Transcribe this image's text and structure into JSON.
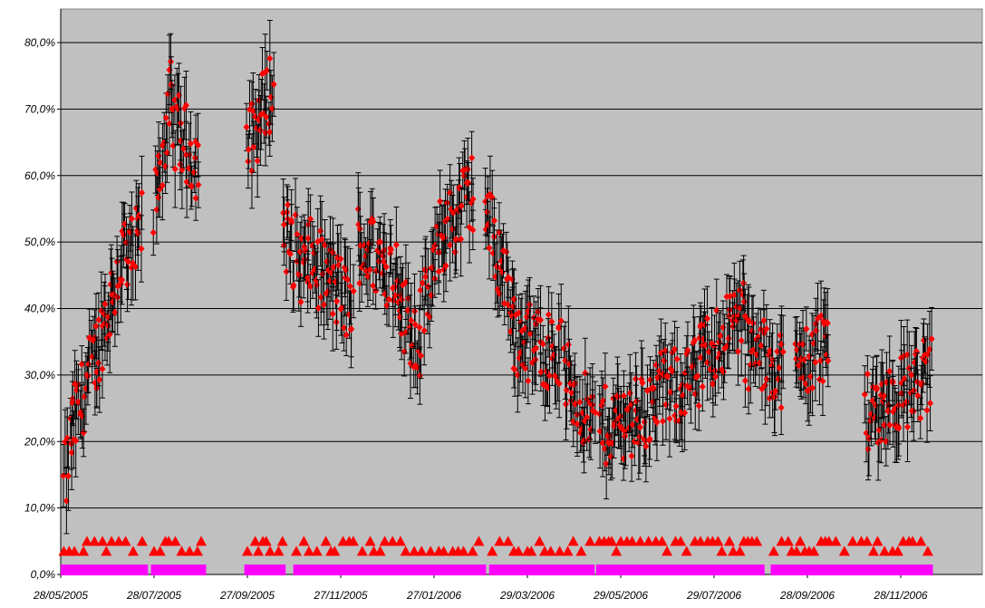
{
  "chart_data": {
    "type": "scatter",
    "title": "",
    "xlabel": "",
    "ylabel": "",
    "x_range": [
      "2005-05-28",
      "2006-12-20"
    ],
    "ylim": [
      0,
      0.85
    ],
    "grid": true,
    "legend": "none",
    "colors": {
      "plot_bg": "#c0c0c0",
      "points": "#ff0000",
      "error_bars": "#000000",
      "periods": "#ff00ff",
      "triangles": "#ff0000",
      "gridlines": "#000000"
    },
    "y_ticks": [
      {
        "v": 0.0,
        "label": "0,0%"
      },
      {
        "v": 0.1,
        "label": "10,0%"
      },
      {
        "v": 0.2,
        "label": "20,0%"
      },
      {
        "v": 0.3,
        "label": "30,0%"
      },
      {
        "v": 0.4,
        "label": "40,0%"
      },
      {
        "v": 0.5,
        "label": "50,0%"
      },
      {
        "v": 0.6,
        "label": "60,0%"
      },
      {
        "v": 0.7,
        "label": "70,0%"
      },
      {
        "v": 0.8,
        "label": "80,0%"
      }
    ],
    "x_ticks": [
      {
        "date": "2005-05-28",
        "label": "28/05/2005"
      },
      {
        "date": "2005-07-28",
        "label": "28/07/2005"
      },
      {
        "date": "2005-09-27",
        "label": "27/09/2005"
      },
      {
        "date": "2005-11-27",
        "label": "27/11/2005"
      },
      {
        "date": "2006-01-27",
        "label": "27/01/2006"
      },
      {
        "date": "2006-03-29",
        "label": "29/03/2006"
      },
      {
        "date": "2006-05-29",
        "label": "29/05/2006"
      },
      {
        "date": "2006-07-29",
        "label": "29/07/2006"
      },
      {
        "date": "2006-09-28",
        "label": "28/09/2006"
      },
      {
        "date": "2006-11-28",
        "label": "28/11/2006"
      }
    ],
    "series": [
      {
        "marker": "diamond",
        "color": "#ff0000",
        "segments": [
          {
            "start": "2005-05-30",
            "end": "2005-06-05",
            "from": 0.13,
            "to": 0.22
          },
          {
            "start": "2005-06-05",
            "end": "2005-06-20",
            "from": 0.22,
            "to": 0.33
          },
          {
            "start": "2005-06-20",
            "end": "2005-07-10",
            "from": 0.33,
            "to": 0.5
          },
          {
            "start": "2005-07-10",
            "end": "2005-07-20",
            "from": 0.45,
            "to": 0.52
          },
          {
            "start": "2005-07-28",
            "end": "2005-08-08",
            "from": 0.55,
            "to": 0.72
          },
          {
            "start": "2005-08-08",
            "end": "2005-08-26",
            "from": 0.68,
            "to": 0.62
          },
          {
            "start": "2005-09-27",
            "end": "2005-10-14",
            "from": 0.64,
            "to": 0.74
          },
          {
            "start": "2005-10-20",
            "end": "2005-11-05",
            "from": 0.52,
            "to": 0.45
          },
          {
            "start": "2005-11-05",
            "end": "2005-12-05",
            "from": 0.48,
            "to": 0.4
          },
          {
            "start": "2005-12-08",
            "end": "2006-01-05",
            "from": 0.5,
            "to": 0.45
          },
          {
            "start": "2006-01-05",
            "end": "2006-01-18",
            "from": 0.4,
            "to": 0.35
          },
          {
            "start": "2006-01-18",
            "end": "2006-01-30",
            "from": 0.38,
            "to": 0.48
          },
          {
            "start": "2006-01-30",
            "end": "2006-02-22",
            "from": 0.5,
            "to": 0.58
          },
          {
            "start": "2006-03-01",
            "end": "2006-03-20",
            "from": 0.55,
            "to": 0.4
          },
          {
            "start": "2006-03-20",
            "end": "2006-04-20",
            "from": 0.36,
            "to": 0.33
          },
          {
            "start": "2006-04-22",
            "end": "2006-05-12",
            "from": 0.3,
            "to": 0.22
          },
          {
            "start": "2006-05-15",
            "end": "2006-06-20",
            "from": 0.22,
            "to": 0.25
          },
          {
            "start": "2006-06-20",
            "end": "2006-07-20",
            "from": 0.27,
            "to": 0.3
          },
          {
            "start": "2006-07-20",
            "end": "2006-08-18",
            "from": 0.32,
            "to": 0.4
          },
          {
            "start": "2006-08-18",
            "end": "2006-09-12",
            "from": 0.34,
            "to": 0.31
          },
          {
            "start": "2006-09-20",
            "end": "2006-10-12",
            "from": 0.3,
            "to": 0.36
          },
          {
            "start": "2006-11-05",
            "end": "2006-12-18",
            "from": 0.24,
            "to": 0.3
          }
        ]
      }
    ],
    "error_bar_halfwidth_approx": 0.045,
    "periods": [
      {
        "start": "2005-05-28",
        "end": "2005-07-24"
      },
      {
        "start": "2005-07-26",
        "end": "2005-08-31"
      },
      {
        "start": "2005-09-25",
        "end": "2005-10-22"
      },
      {
        "start": "2005-10-27",
        "end": "2006-03-02"
      },
      {
        "start": "2006-03-04",
        "end": "2006-05-12"
      },
      {
        "start": "2006-05-13",
        "end": "2006-08-31"
      },
      {
        "start": "2006-09-04",
        "end": "2006-12-19"
      }
    ],
    "triangle_levels": [
      0.035,
      0.05
    ]
  }
}
